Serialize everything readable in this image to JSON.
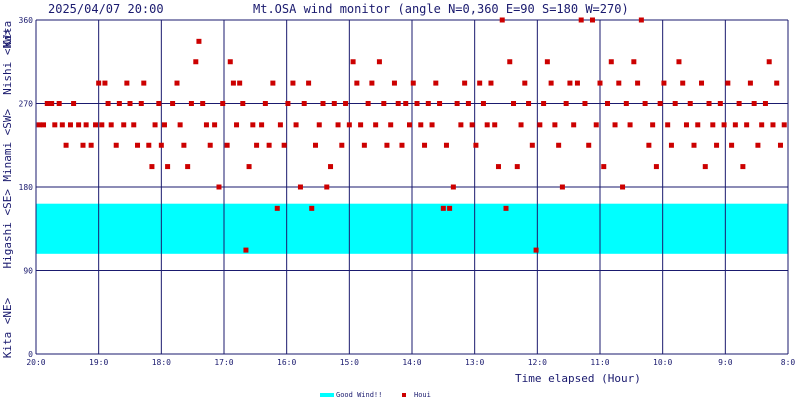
{
  "chart_data": {
    "type": "scatter",
    "title": "Mt.OSA wind monitor (angle N=0,360 E=90 S=180 W=270)",
    "timestamp": "2025/04/07 20:00",
    "xlabel": "Time elapsed (Hour)",
    "y_axis_labels": [
      {
        "range": [
          0,
          45
        ],
        "text": "Kita"
      },
      {
        "range": [
          0,
          90
        ],
        "text": "<NE>"
      },
      {
        "range": [
          90,
          180
        ],
        "text": "Higashi <SE>"
      },
      {
        "range": [
          180,
          270
        ],
        "text": "Minami <SW>"
      },
      {
        "range": [
          270,
          360
        ],
        "text": "Nishi <NW>"
      },
      {
        "range": [
          315,
          360
        ],
        "text": "Kita"
      }
    ],
    "x_tick_labels": [
      {
        "x": 0,
        "label": "20:0"
      },
      {
        "x": 1,
        "label": "19:0"
      },
      {
        "x": 2,
        "label": "18:0"
      },
      {
        "x": 3,
        "label": "17:0"
      },
      {
        "x": 4,
        "label": "16:0"
      },
      {
        "x": 5,
        "label": "15:0"
      },
      {
        "x": 6,
        "label": "14:0"
      },
      {
        "x": 7,
        "label": "13:0"
      },
      {
        "x": 8,
        "label": "12:0"
      },
      {
        "x": 9,
        "label": "11:0"
      },
      {
        "x": 10,
        "label": "10:0"
      },
      {
        "x": 11,
        "label": "9:0"
      },
      {
        "x": 12,
        "label": "8:0"
      }
    ],
    "y_ticks": [
      0,
      90,
      180,
      270,
      360
    ],
    "xlim": [
      0,
      12
    ],
    "ylim": [
      0,
      360
    ],
    "grid": true,
    "good_band": {
      "name": "Good Wind!!",
      "from": 108,
      "to": 162,
      "color": "#00ffff"
    },
    "series": [
      {
        "name": "Houi",
        "color": "#cc0000",
        "points": [
          [
            0.05,
            247
          ],
          [
            0.12,
            247
          ],
          [
            0.18,
            270
          ],
          [
            0.25,
            270
          ],
          [
            0.3,
            247
          ],
          [
            0.37,
            270
          ],
          [
            0.42,
            247
          ],
          [
            0.48,
            225
          ],
          [
            0.55,
            247
          ],
          [
            0.6,
            270
          ],
          [
            0.68,
            247
          ],
          [
            0.75,
            225
          ],
          [
            0.8,
            247
          ],
          [
            0.88,
            225
          ],
          [
            0.95,
            247
          ],
          [
            1.0,
            292
          ],
          [
            1.05,
            247
          ],
          [
            1.1,
            292
          ],
          [
            1.15,
            270
          ],
          [
            1.2,
            247
          ],
          [
            1.28,
            225
          ],
          [
            1.33,
            270
          ],
          [
            1.4,
            247
          ],
          [
            1.45,
            292
          ],
          [
            1.5,
            270
          ],
          [
            1.56,
            247
          ],
          [
            1.62,
            225
          ],
          [
            1.68,
            270
          ],
          [
            1.72,
            292
          ],
          [
            1.8,
            225
          ],
          [
            1.85,
            202
          ],
          [
            1.9,
            247
          ],
          [
            1.96,
            270
          ],
          [
            2.0,
            225
          ],
          [
            2.05,
            247
          ],
          [
            2.1,
            202
          ],
          [
            2.18,
            270
          ],
          [
            2.25,
            292
          ],
          [
            2.3,
            247
          ],
          [
            2.36,
            225
          ],
          [
            2.42,
            202
          ],
          [
            2.48,
            270
          ],
          [
            2.55,
            315
          ],
          [
            2.6,
            337
          ],
          [
            2.66,
            270
          ],
          [
            2.72,
            247
          ],
          [
            2.78,
            225
          ],
          [
            2.85,
            247
          ],
          [
            2.92,
            180
          ],
          [
            2.98,
            270
          ],
          [
            3.05,
            225
          ],
          [
            3.1,
            315
          ],
          [
            3.15,
            292
          ],
          [
            3.2,
            247
          ],
          [
            3.25,
            292
          ],
          [
            3.3,
            270
          ],
          [
            3.35,
            112
          ],
          [
            3.4,
            202
          ],
          [
            3.46,
            247
          ],
          [
            3.52,
            225
          ],
          [
            3.6,
            247
          ],
          [
            3.66,
            270
          ],
          [
            3.72,
            225
          ],
          [
            3.78,
            292
          ],
          [
            3.85,
            157
          ],
          [
            3.9,
            247
          ],
          [
            3.96,
            225
          ],
          [
            4.02,
            270
          ],
          [
            4.1,
            292
          ],
          [
            4.15,
            247
          ],
          [
            4.22,
            180
          ],
          [
            4.28,
            270
          ],
          [
            4.35,
            292
          ],
          [
            4.4,
            157
          ],
          [
            4.46,
            225
          ],
          [
            4.52,
            247
          ],
          [
            4.58,
            270
          ],
          [
            4.64,
            180
          ],
          [
            4.7,
            202
          ],
          [
            4.76,
            270
          ],
          [
            4.82,
            247
          ],
          [
            4.88,
            225
          ],
          [
            4.94,
            270
          ],
          [
            5.0,
            247
          ],
          [
            5.06,
            315
          ],
          [
            5.12,
            292
          ],
          [
            5.18,
            247
          ],
          [
            5.24,
            225
          ],
          [
            5.3,
            270
          ],
          [
            5.36,
            292
          ],
          [
            5.42,
            247
          ],
          [
            5.48,
            315
          ],
          [
            5.55,
            270
          ],
          [
            5.6,
            225
          ],
          [
            5.66,
            247
          ],
          [
            5.72,
            292
          ],
          [
            5.78,
            270
          ],
          [
            5.84,
            225
          ],
          [
            5.9,
            270
          ],
          [
            5.96,
            247
          ],
          [
            6.02,
            292
          ],
          [
            6.08,
            270
          ],
          [
            6.14,
            247
          ],
          [
            6.2,
            225
          ],
          [
            6.26,
            270
          ],
          [
            6.32,
            247
          ],
          [
            6.38,
            292
          ],
          [
            6.44,
            270
          ],
          [
            6.5,
            157
          ],
          [
            6.55,
            225
          ],
          [
            6.6,
            157
          ],
          [
            6.66,
            180
          ],
          [
            6.72,
            270
          ],
          [
            6.78,
            247
          ],
          [
            6.84,
            292
          ],
          [
            6.9,
            270
          ],
          [
            6.96,
            247
          ],
          [
            7.02,
            225
          ],
          [
            7.08,
            292
          ],
          [
            7.14,
            270
          ],
          [
            7.2,
            247
          ],
          [
            7.26,
            292
          ],
          [
            7.32,
            247
          ],
          [
            7.38,
            202
          ],
          [
            7.44,
            360
          ],
          [
            7.5,
            157
          ],
          [
            7.56,
            315
          ],
          [
            7.62,
            270
          ],
          [
            7.68,
            202
          ],
          [
            7.74,
            247
          ],
          [
            7.8,
            292
          ],
          [
            7.86,
            270
          ],
          [
            7.92,
            225
          ],
          [
            7.98,
            112
          ],
          [
            8.04,
            247
          ],
          [
            8.1,
            270
          ],
          [
            8.16,
            315
          ],
          [
            8.22,
            292
          ],
          [
            8.28,
            247
          ],
          [
            8.34,
            225
          ],
          [
            8.4,
            180
          ],
          [
            8.46,
            270
          ],
          [
            8.52,
            292
          ],
          [
            8.58,
            247
          ],
          [
            8.64,
            292
          ],
          [
            8.7,
            360
          ],
          [
            8.76,
            270
          ],
          [
            8.82,
            225
          ],
          [
            8.88,
            360
          ],
          [
            8.94,
            247
          ],
          [
            9.0,
            292
          ],
          [
            9.06,
            202
          ],
          [
            9.12,
            270
          ],
          [
            9.18,
            315
          ],
          [
            9.24,
            247
          ],
          [
            9.3,
            292
          ],
          [
            9.36,
            180
          ],
          [
            9.42,
            270
          ],
          [
            9.48,
            247
          ],
          [
            9.54,
            315
          ],
          [
            9.6,
            292
          ],
          [
            9.66,
            360
          ],
          [
            9.72,
            270
          ],
          [
            9.78,
            225
          ],
          [
            9.84,
            247
          ],
          [
            9.9,
            202
          ],
          [
            9.96,
            270
          ],
          [
            10.02,
            292
          ],
          [
            10.08,
            247
          ],
          [
            10.14,
            225
          ],
          [
            10.2,
            270
          ],
          [
            10.26,
            315
          ],
          [
            10.32,
            292
          ],
          [
            10.38,
            247
          ],
          [
            10.44,
            270
          ],
          [
            10.5,
            225
          ],
          [
            10.56,
            247
          ],
          [
            10.62,
            292
          ],
          [
            10.68,
            202
          ],
          [
            10.74,
            270
          ],
          [
            10.8,
            247
          ],
          [
            10.86,
            225
          ],
          [
            10.92,
            270
          ],
          [
            10.98,
            247
          ],
          [
            11.04,
            292
          ],
          [
            11.1,
            225
          ],
          [
            11.16,
            247
          ],
          [
            11.22,
            270
          ],
          [
            11.28,
            202
          ],
          [
            11.34,
            247
          ],
          [
            11.4,
            292
          ],
          [
            11.46,
            270
          ],
          [
            11.52,
            225
          ],
          [
            11.58,
            247
          ],
          [
            11.64,
            270
          ],
          [
            11.7,
            315
          ],
          [
            11.76,
            247
          ],
          [
            11.82,
            292
          ],
          [
            11.88,
            225
          ],
          [
            11.94,
            247
          ]
        ]
      }
    ]
  }
}
